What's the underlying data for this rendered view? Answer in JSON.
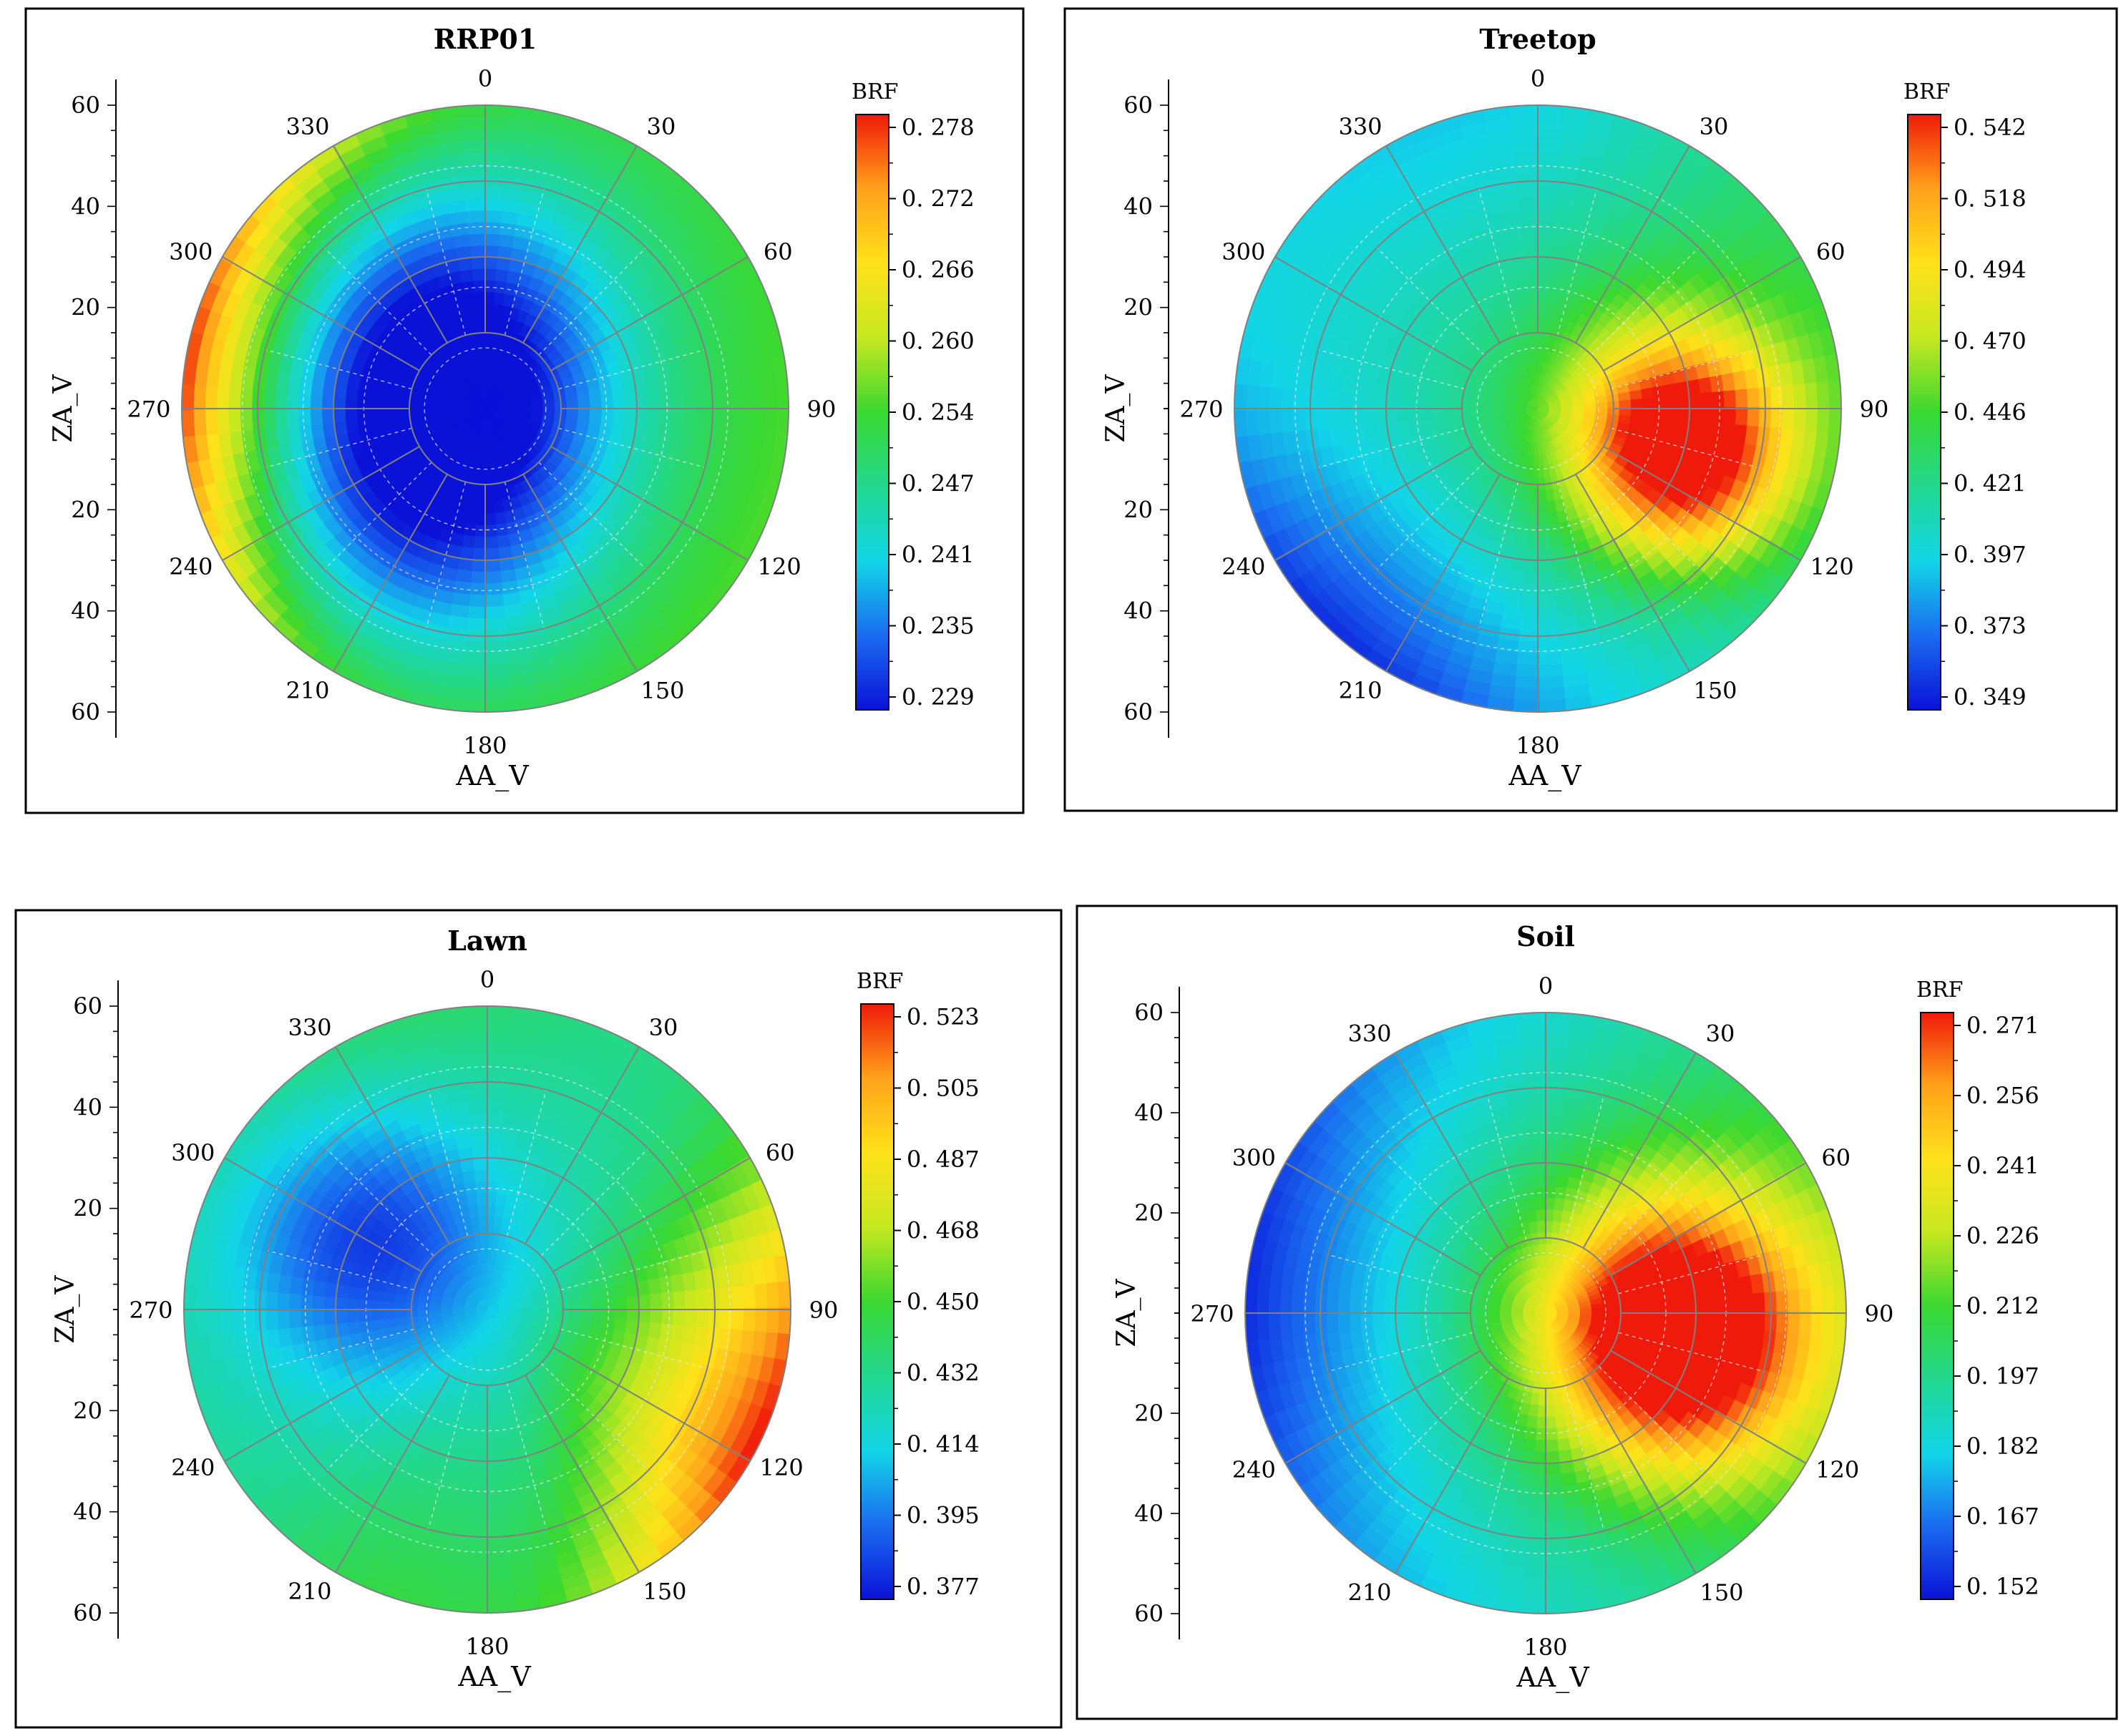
{
  "colors": {
    "scale": [
      "#0a12d8",
      "#1a6cf0",
      "#12d6e8",
      "#22d890",
      "#3ad830",
      "#c6e820",
      "#ffe21a",
      "#ffa21a",
      "#f01a0a"
    ],
    "frame": "#000000",
    "grid": "#808080",
    "grid_inner": "#e8e8f4"
  },
  "chart_data": [
    {
      "type": "polar-heatmap",
      "title": "RRP01",
      "colorbar_label": "BRF",
      "colorbar_ticks": [
        "0. 278",
        "0. 272",
        "0. 266",
        "0. 260",
        "0. 254",
        "0. 247",
        "0. 241",
        "0. 235",
        "0. 229"
      ],
      "vmin": 0.229,
      "vmax": 0.278,
      "xlabel": "AA_V",
      "ylabel": "ZA_V",
      "azimuth_labels": [
        "0",
        "30",
        "60",
        "90",
        "120",
        "150",
        "180",
        "210",
        "240",
        "270",
        "300",
        "330"
      ],
      "zenith_ticks_top": [
        "60",
        "40",
        "20"
      ],
      "zenith_ticks_bottom": [
        "20",
        "40",
        "60"
      ],
      "zenith_range": [
        0,
        60
      ],
      "field": {
        "base": 0.252,
        "blobs": [
          {
            "az": 330,
            "za": 16,
            "amp": -0.022,
            "s": 24
          },
          {
            "az": 210,
            "za": 22,
            "amp": -0.018,
            "s": 24
          }
        ],
        "edges": [
          {
            "az": 280,
            "amp": 0.029,
            "s": 55,
            "p": 3.0
          },
          {
            "az": 120,
            "amp": 0.003,
            "s": 80,
            "p": 2.0
          }
        ]
      }
    },
    {
      "type": "polar-heatmap",
      "title": "Treetop",
      "colorbar_label": "BRF",
      "colorbar_ticks": [
        "0. 542",
        "0. 518",
        "0. 494",
        "0. 470",
        "0. 446",
        "0. 421",
        "0. 397",
        "0. 373",
        "0. 349"
      ],
      "vmin": 0.349,
      "vmax": 0.542,
      "xlabel": "AA_V",
      "ylabel": "ZA_V",
      "azimuth_labels": [
        "0",
        "30",
        "60",
        "90",
        "120",
        "150",
        "180",
        "210",
        "240",
        "270",
        "300",
        "330"
      ],
      "zenith_ticks_top": [
        "60",
        "40",
        "20"
      ],
      "zenith_ticks_bottom": [
        "20",
        "40",
        "60"
      ],
      "zenith_range": [
        0,
        60
      ],
      "field": {
        "base": 0.405,
        "blobs": [
          {
            "az": 106,
            "za": 30,
            "amp": 0.14,
            "s": 15
          },
          {
            "az": 80,
            "za": 15,
            "amp": 0.035,
            "s": 24
          }
        ],
        "edges": [
          {
            "az": 222,
            "amp": -0.05,
            "s": 45,
            "p": 2.0
          },
          {
            "az": 345,
            "amp": -0.013,
            "s": 40,
            "p": 2.0
          },
          {
            "az": 75,
            "amp": 0.03,
            "s": 50,
            "p": 1.4
          }
        ]
      }
    },
    {
      "type": "polar-heatmap",
      "title": "Lawn",
      "colorbar_label": "BRF",
      "colorbar_ticks": [
        "0. 523",
        "0. 505",
        "0. 487",
        "0. 468",
        "0. 450",
        "0. 432",
        "0. 414",
        "0. 395",
        "0. 377"
      ],
      "vmin": 0.377,
      "vmax": 0.523,
      "xlabel": "AA_V",
      "ylabel": "ZA_V",
      "azimuth_labels": [
        "0",
        "30",
        "60",
        "90",
        "120",
        "150",
        "180",
        "210",
        "240",
        "270",
        "300",
        "330"
      ],
      "zenith_ticks_top": [
        "60",
        "40",
        "20"
      ],
      "zenith_ticks_bottom": [
        "20",
        "40",
        "60"
      ],
      "zenith_range": [
        0,
        60
      ],
      "field": {
        "base": 0.43,
        "blobs": [
          {
            "az": 300,
            "za": 26,
            "amp": -0.045,
            "s": 20
          }
        ],
        "edges": [
          {
            "az": 120,
            "amp": 0.09,
            "s": 38,
            "p": 1.5
          },
          {
            "az": 80,
            "amp": 0.03,
            "s": 28,
            "p": 1.5
          },
          {
            "az": 200,
            "amp": 0.015,
            "s": 25,
            "p": 1.5
          },
          {
            "az": 340,
            "amp": 0.012,
            "s": 40,
            "p": 3.0
          }
        ]
      }
    },
    {
      "type": "polar-heatmap",
      "title": "Soil",
      "colorbar_label": "BRF",
      "colorbar_ticks": [
        "0. 271",
        "0. 256",
        "0. 241",
        "0. 226",
        "0. 212",
        "0. 197",
        "0. 182",
        "0. 167",
        "0. 152"
      ],
      "vmin": 0.152,
      "vmax": 0.271,
      "xlabel": "AA_V",
      "ylabel": "ZA_V",
      "azimuth_labels": [
        "0",
        "30",
        "60",
        "90",
        "120",
        "150",
        "180",
        "210",
        "240",
        "270",
        "300",
        "330"
      ],
      "zenith_ticks_top": [
        "60",
        "40",
        "20"
      ],
      "zenith_ticks_bottom": [
        "20",
        "40",
        "60"
      ],
      "zenith_range": [
        0,
        60
      ],
      "field": {
        "base": 0.185,
        "blobs": [
          {
            "az": 100,
            "za": 26,
            "amp": 0.085,
            "s": 18
          },
          {
            "az": 90,
            "za": 22,
            "amp": 0.03,
            "s": 30
          }
        ],
        "edges": [
          {
            "az": 275,
            "amp": -0.03,
            "s": 60,
            "p": 1.8
          },
          {
            "az": 90,
            "amp": 0.02,
            "s": 60,
            "p": 1.5
          }
        ]
      }
    }
  ]
}
